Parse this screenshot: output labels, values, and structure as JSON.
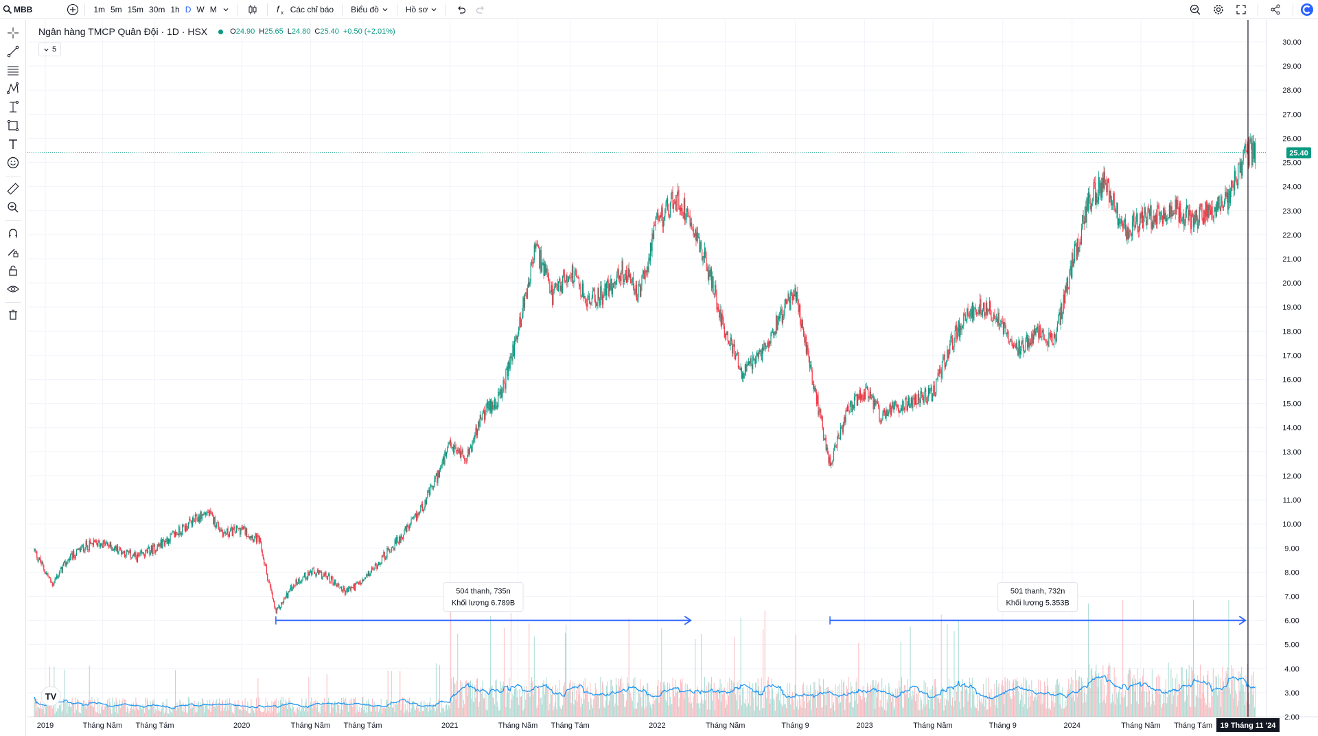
{
  "toolbar": {
    "symbol": "MBB",
    "intervals": [
      "1m",
      "5m",
      "15m",
      "30m",
      "1h",
      "D",
      "W",
      "M"
    ],
    "active_interval": "D",
    "indicators_label": "Các chỉ báo",
    "chart_type_label": "Biểu đồ",
    "profile_label": "Hồ sơ",
    "icons": [
      "search-icon",
      "add-icon",
      "chevron-down-icon",
      "candles-icon",
      "fx-icon",
      "undo-icon",
      "redo-icon",
      "screener-icon",
      "gear-icon",
      "fullscreen-icon",
      "share-icon",
      "app-logo-icon"
    ]
  },
  "left_tools": [
    "crosshair-icon",
    "trend-line-icon",
    "fib-lines-icon",
    "pattern-icon",
    "projection-icon",
    "shapes-icon",
    "text-icon",
    "emoji-icon",
    "ruler-icon",
    "zoom-in-icon",
    "magnet-icon",
    "drawing-lock-icon",
    "lock-icon",
    "eye-icon",
    "trash-icon"
  ],
  "legend": {
    "title": "Ngân hàng TMCP Quân Đội · 1D · HSX",
    "o_label": "O",
    "o": "24.90",
    "h_label": "H",
    "h": "25.65",
    "l_label": "L",
    "l": "24.80",
    "c_label": "C",
    "c": "25.40",
    "change": "+0.50 (+2.01%)",
    "collapsed_count": "5"
  },
  "chart_data": {
    "type": "candlestick",
    "y_axis": {
      "ticks": [
        "30.00",
        "29.00",
        "28.00",
        "27.00",
        "26.00",
        "25.00",
        "24.00",
        "23.00",
        "22.00",
        "21.00",
        "20.00",
        "19.00",
        "18.00",
        "17.00",
        "16.00",
        "15.00",
        "14.00",
        "13.00",
        "12.00",
        "11.00",
        "10.00",
        "9.00",
        "8.00",
        "7.00",
        "6.00",
        "5.00",
        "4.00",
        "3.00",
        "2.00"
      ],
      "range": [
        2,
        30
      ],
      "last_price_label": "25.40"
    },
    "x_axis": {
      "labels": [
        "2019",
        "Tháng Năm",
        "Tháng Tám",
        "2020",
        "Tháng Năm",
        "Tháng Tám",
        "2021",
        "Tháng Năm",
        "Tháng Tám",
        "2022",
        "Tháng Năm",
        "Tháng 9",
        "2023",
        "Tháng Năm",
        "Tháng 9",
        "2024",
        "Tháng Năm",
        "Tháng Tám"
      ],
      "cursor_label": "19 Tháng 11 '24"
    },
    "price_path": [
      {
        "date": "2019-01",
        "close": 8.9
      },
      {
        "date": "2019-02",
        "close": 7.5
      },
      {
        "date": "2019-03",
        "close": 8.5
      },
      {
        "date": "2019-04",
        "close": 9.1
      },
      {
        "date": "2019-05",
        "close": 9.2
      },
      {
        "date": "2019-06",
        "close": 8.9
      },
      {
        "date": "2019-07",
        "close": 8.6
      },
      {
        "date": "2019-08",
        "close": 9.0
      },
      {
        "date": "2019-09",
        "close": 9.5
      },
      {
        "date": "2019-10",
        "close": 10.0
      },
      {
        "date": "2019-11",
        "close": 10.5
      },
      {
        "date": "2019-12",
        "close": 9.6
      },
      {
        "date": "2020-01",
        "close": 9.8
      },
      {
        "date": "2020-02",
        "close": 9.3
      },
      {
        "date": "2020-03",
        "close": 6.3
      },
      {
        "date": "2020-04",
        "close": 7.5
      },
      {
        "date": "2020-05",
        "close": 8.0
      },
      {
        "date": "2020-06",
        "close": 7.8
      },
      {
        "date": "2020-07",
        "close": 7.2
      },
      {
        "date": "2020-08",
        "close": 7.6
      },
      {
        "date": "2020-09",
        "close": 8.5
      },
      {
        "date": "2020-10",
        "close": 9.3
      },
      {
        "date": "2020-11",
        "close": 10.2
      },
      {
        "date": "2020-12",
        "close": 11.5
      },
      {
        "date": "2021-01",
        "close": 13.2
      },
      {
        "date": "2021-02",
        "close": 12.8
      },
      {
        "date": "2021-03",
        "close": 14.6
      },
      {
        "date": "2021-04",
        "close": 15.3
      },
      {
        "date": "2021-05",
        "close": 18.0
      },
      {
        "date": "2021-06",
        "close": 21.5
      },
      {
        "date": "2021-07",
        "close": 19.4
      },
      {
        "date": "2021-08",
        "close": 20.5
      },
      {
        "date": "2021-09",
        "close": 19.2
      },
      {
        "date": "2021-10",
        "close": 19.6
      },
      {
        "date": "2021-11",
        "close": 20.5
      },
      {
        "date": "2021-12",
        "close": 19.5
      },
      {
        "date": "2022-01",
        "close": 22.5
      },
      {
        "date": "2022-02",
        "close": 23.5
      },
      {
        "date": "2022-03",
        "close": 22.8
      },
      {
        "date": "2022-04",
        "close": 20.5
      },
      {
        "date": "2022-05",
        "close": 18.0
      },
      {
        "date": "2022-06",
        "close": 16.2
      },
      {
        "date": "2022-07",
        "close": 17.0
      },
      {
        "date": "2022-08",
        "close": 18.5
      },
      {
        "date": "2022-09",
        "close": 19.6
      },
      {
        "date": "2022-10",
        "close": 16.0
      },
      {
        "date": "2022-11",
        "close": 12.5
      },
      {
        "date": "2022-12",
        "close": 14.6
      },
      {
        "date": "2023-01",
        "close": 15.5
      },
      {
        "date": "2023-02",
        "close": 14.4
      },
      {
        "date": "2023-03",
        "close": 14.9
      },
      {
        "date": "2023-04",
        "close": 15.2
      },
      {
        "date": "2023-05",
        "close": 15.4
      },
      {
        "date": "2023-06",
        "close": 17.5
      },
      {
        "date": "2023-07",
        "close": 18.7
      },
      {
        "date": "2023-08",
        "close": 19.0
      },
      {
        "date": "2023-09",
        "close": 18.3
      },
      {
        "date": "2023-10",
        "close": 17.2
      },
      {
        "date": "2023-11",
        "close": 17.9
      },
      {
        "date": "2023-12",
        "close": 17.6
      },
      {
        "date": "2024-01",
        "close": 20.8
      },
      {
        "date": "2024-02",
        "close": 23.5
      },
      {
        "date": "2024-03",
        "close": 24.2
      },
      {
        "date": "2024-04",
        "close": 22.2
      },
      {
        "date": "2024-05",
        "close": 22.6
      },
      {
        "date": "2024-06",
        "close": 22.8
      },
      {
        "date": "2024-07",
        "close": 23.1
      },
      {
        "date": "2024-08",
        "close": 22.6
      },
      {
        "date": "2024-09",
        "close": 23.0
      },
      {
        "date": "2024-10",
        "close": 23.5
      },
      {
        "date": "2024-11",
        "close": 25.4
      }
    ],
    "horizontal_line": {
      "value": 25.4
    },
    "measurements": [
      {
        "from_date": "2020-03",
        "to_date": "2022-03",
        "price": 6.0,
        "line1": "504 thanh, 735n",
        "line2": "Khối lượng 6.789B"
      },
      {
        "from_date": "2022-11",
        "to_date": "2024-11",
        "price": 6.0,
        "line1": "501 thanh, 732n",
        "line2": "Khối lượng 5.353B"
      }
    ],
    "colors": {
      "up": "#089981",
      "down": "#f23645",
      "volume_ma": "#2196f3",
      "measure": "#2962ff",
      "price_label": "#089981"
    }
  }
}
